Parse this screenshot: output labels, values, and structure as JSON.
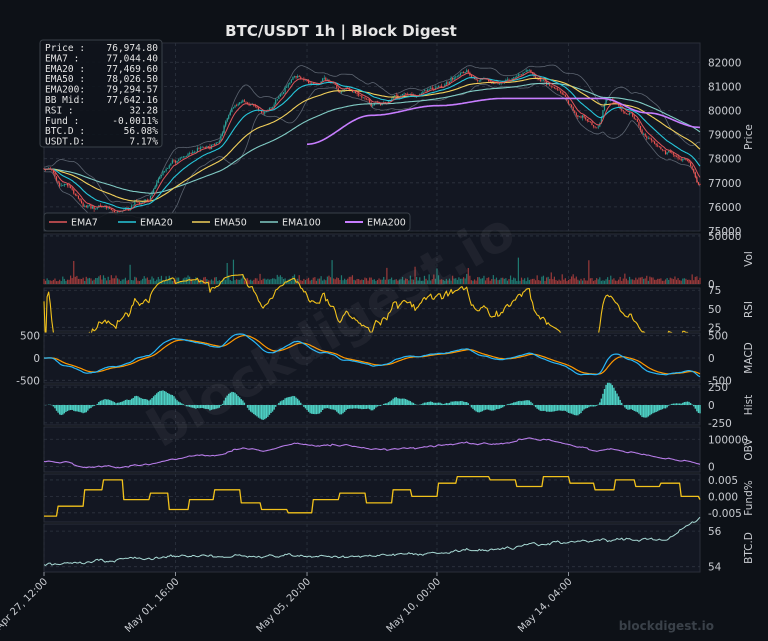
{
  "chart_data": {
    "type": "line",
    "title": "BTC/USDT  1h  |  Block Digest",
    "watermark": "blockdigest.io",
    "footer": "blockdigest.io",
    "x_ticks": [
      "Apr 27, 12:00",
      "May 01, 16:00",
      "May 05, 20:00",
      "May 10, 00:00",
      "May 14, 04:00"
    ],
    "info_box": [
      {
        "label": "Price :",
        "value": "76,974.80"
      },
      {
        "label": "EMA7   :",
        "value": "77,044.40"
      },
      {
        "label": "EMA20 :",
        "value": "77,469.60"
      },
      {
        "label": "EMA50 :",
        "value": "78,026.50"
      },
      {
        "label": "EMA200:",
        "value": "79,294.57"
      },
      {
        "label": "BB Mid:",
        "value": "77,642.16"
      },
      {
        "label": "RSI    :",
        "value": "32.28"
      },
      {
        "label": "Fund   :",
        "value": "-0.0011%"
      },
      {
        "label": "BTC.D :",
        "value": "56.08%"
      },
      {
        "label": "USDT.D:",
        "value": "7.17%"
      }
    ],
    "legend": [
      {
        "name": "EMA7",
        "color": "#e0565b"
      },
      {
        "name": "EMA20",
        "color": "#26c6da"
      },
      {
        "name": "EMA50",
        "color": "#f2d05b"
      },
      {
        "name": "EMA100",
        "color": "#80cbc4"
      },
      {
        "name": "EMA200",
        "color": "#c77dff"
      }
    ],
    "panels": [
      {
        "id": "price",
        "ylabel": "Price",
        "ylim": [
          75000,
          82800
        ],
        "ticks": [
          "75000",
          "76000",
          "77000",
          "78000",
          "79000",
          "80000",
          "81000",
          "82000"
        ],
        "tick_vals": [
          75000,
          76000,
          77000,
          78000,
          79000,
          80000,
          81000,
          82000
        ],
        "side": "right"
      },
      {
        "id": "vol",
        "ylabel": "Vol",
        "ylim": [
          0,
          52000
        ],
        "ticks": [
          "0",
          "50000"
        ],
        "tick_vals": [
          0,
          50000
        ],
        "side": "right"
      },
      {
        "id": "rsi",
        "ylabel": "RSI",
        "ylim": [
          20,
          78
        ],
        "ticks": [
          "25",
          "50",
          "75"
        ],
        "tick_vals": [
          25,
          50,
          75
        ],
        "side": "right"
      },
      {
        "id": "macd",
        "ylabel": "MACD",
        "ylim": [
          -560,
          560
        ],
        "ticks": [
          "-500",
          "0",
          "500"
        ],
        "tick_vals": [
          -500,
          0,
          500
        ],
        "side": "both"
      },
      {
        "id": "hist",
        "ylabel": "Hist",
        "ylim": [
          -280,
          280
        ],
        "ticks": [
          "-250",
          "0",
          "250"
        ],
        "tick_vals": [
          -250,
          0,
          250
        ],
        "side": "right"
      },
      {
        "id": "obv",
        "ylabel": "OBV",
        "ylim": [
          -20000,
          145000
        ],
        "ticks": [
          "0",
          "100000"
        ],
        "tick_vals": [
          0,
          100000
        ],
        "side": "right"
      },
      {
        "id": "fund",
        "ylabel": "Fund%",
        "ylim": [
          -0.0078,
          0.0068
        ],
        "ticks": [
          "-0.005",
          "0.000",
          "0.005"
        ],
        "tick_vals": [
          -0.005,
          0,
          0.005
        ],
        "side": "right"
      },
      {
        "id": "btcd",
        "ylabel": "BTC.D",
        "ylim": [
          53.7,
          56.4
        ],
        "ticks": [
          "54",
          "56"
        ],
        "tick_vals": [
          54,
          56
        ],
        "side": "right"
      }
    ],
    "series_colors": {
      "up": "#26a69a",
      "down": "#ef5350",
      "rsi": "#f2c21b",
      "macd": "#29b6f6",
      "signal": "#ff9800",
      "hist": "#4dd0c4",
      "obv": "#b57be6",
      "fund": "#f2c21b",
      "btcd": "#a8dad5"
    },
    "price_anchors": [
      [
        0,
        77600
      ],
      [
        0.03,
        76900
      ],
      [
        0.07,
        76000
      ],
      [
        0.11,
        75800
      ],
      [
        0.15,
        76300
      ],
      [
        0.2,
        77900
      ],
      [
        0.25,
        78400
      ],
      [
        0.3,
        80300
      ],
      [
        0.34,
        79900
      ],
      [
        0.38,
        81400
      ],
      [
        0.42,
        81200
      ],
      [
        0.46,
        80800
      ],
      [
        0.5,
        80300
      ],
      [
        0.55,
        80600
      ],
      [
        0.6,
        81000
      ],
      [
        0.64,
        81600
      ],
      [
        0.67,
        81200
      ],
      [
        0.7,
        81200
      ],
      [
        0.74,
        81700
      ],
      [
        0.78,
        80900
      ],
      [
        0.82,
        79700
      ],
      [
        0.84,
        79400
      ],
      [
        0.86,
        80600
      ],
      [
        0.89,
        80000
      ],
      [
        0.92,
        79000
      ],
      [
        0.95,
        78300
      ],
      [
        0.98,
        77900
      ],
      [
        1.0,
        76900
      ]
    ],
    "ema200_anchors": [
      [
        0.4,
        78600
      ],
      [
        0.5,
        79800
      ],
      [
        0.6,
        80200
      ],
      [
        0.7,
        80500
      ],
      [
        0.78,
        80500
      ],
      [
        0.85,
        80500
      ],
      [
        0.92,
        79900
      ],
      [
        1.0,
        79300
      ]
    ],
    "fund_steps": [
      [
        0,
        -0.006
      ],
      [
        0.02,
        -0.003
      ],
      [
        0.06,
        0.002
      ],
      [
        0.09,
        0.005
      ],
      [
        0.12,
        -0.001
      ],
      [
        0.16,
        0.001
      ],
      [
        0.19,
        -0.004
      ],
      [
        0.22,
        -0.001
      ],
      [
        0.26,
        0.002
      ],
      [
        0.3,
        -0.002
      ],
      [
        0.33,
        -0.004
      ],
      [
        0.37,
        -0.005
      ],
      [
        0.41,
        -0.001
      ],
      [
        0.45,
        0.001
      ],
      [
        0.49,
        -0.002
      ],
      [
        0.53,
        0.002
      ],
      [
        0.56,
        0.0
      ],
      [
        0.6,
        0.004
      ],
      [
        0.63,
        0.006
      ],
      [
        0.68,
        0.005
      ],
      [
        0.72,
        0.003
      ],
      [
        0.76,
        0.006
      ],
      [
        0.8,
        0.004
      ],
      [
        0.84,
        0.002
      ],
      [
        0.87,
        0.005
      ],
      [
        0.9,
        0.003
      ],
      [
        0.94,
        0.004
      ],
      [
        0.97,
        0.0
      ],
      [
        1.0,
        -0.001
      ]
    ]
  }
}
